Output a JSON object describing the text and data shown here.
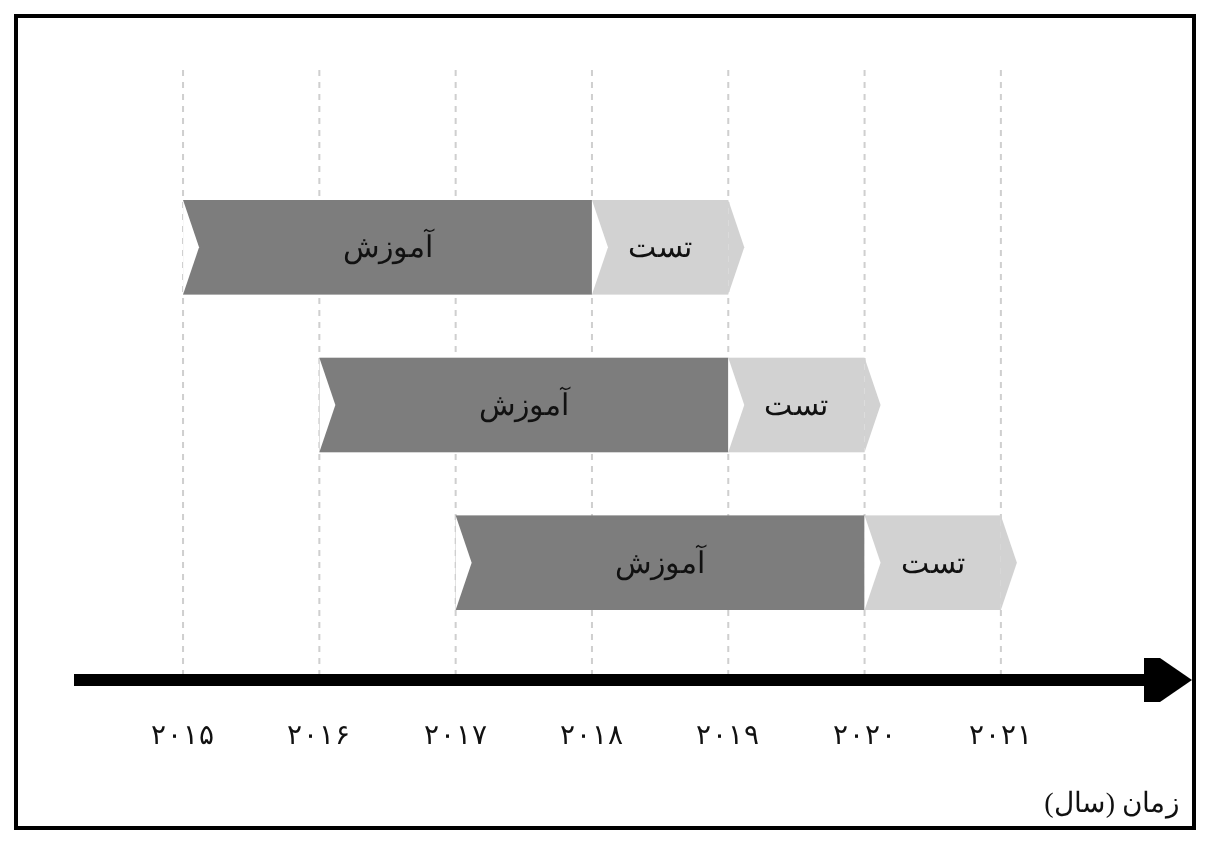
{
  "chart_data": {
    "type": "bar",
    "orientation": "horizontal",
    "xlabel": "زمان (سال)",
    "categories": [
      null,
      null,
      null
    ],
    "series": [
      {
        "name": "آموزش",
        "color": "#7d7d7d",
        "base": [
          2015,
          2016,
          2017
        ],
        "values": [
          3,
          3,
          3
        ]
      },
      {
        "name": "تست",
        "color": "#d2d2d2",
        "base": [
          2018,
          2019,
          2020
        ],
        "values": [
          1,
          1,
          1
        ]
      }
    ],
    "xlim": [
      2014.2,
      2022.05
    ],
    "xticks": [
      {
        "value": 2015,
        "label": "۲۰۱۵"
      },
      {
        "value": 2016,
        "label": "۲۰۱۶"
      },
      {
        "value": 2017,
        "label": "۲۰۱۷"
      },
      {
        "value": 2018,
        "label": "۲۰۱۸"
      },
      {
        "value": 2019,
        "label": "۲۰۱۹"
      },
      {
        "value": 2020,
        "label": "۲۰۲۰"
      },
      {
        "value": 2021,
        "label": "۲۰۲۱"
      }
    ],
    "grid": "x",
    "tick_labels": "x"
  }
}
